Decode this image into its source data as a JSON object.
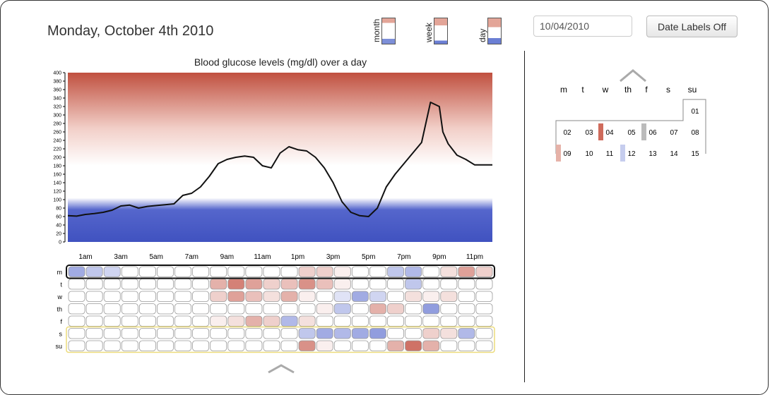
{
  "header": {
    "title": "Monday, October 4th 2010",
    "legend": [
      "month",
      "week",
      "day"
    ],
    "date_value": "10/04/2010",
    "date_labels_button": "Date Labels Off"
  },
  "colors": {
    "high": "#c0392b",
    "low": "#3f51c4",
    "line": "#111111"
  },
  "chart_data": {
    "type": "line",
    "title": "Blood glucose levels (mg/dl) over a day",
    "ylim": [
      0,
      400
    ],
    "yticks": [
      0,
      20,
      40,
      60,
      80,
      100,
      120,
      140,
      160,
      180,
      200,
      220,
      240,
      260,
      280,
      300,
      320,
      340,
      360,
      380,
      400
    ],
    "xlim": [
      0,
      24
    ],
    "xticks": [
      {
        "x": 1,
        "label": "1am"
      },
      {
        "x": 3,
        "label": "3am"
      },
      {
        "x": 5,
        "label": "5am"
      },
      {
        "x": 7,
        "label": "7am"
      },
      {
        "x": 9,
        "label": "9am"
      },
      {
        "x": 11,
        "label": "11am"
      },
      {
        "x": 13,
        "label": "1pm"
      },
      {
        "x": 15,
        "label": "3pm"
      },
      {
        "x": 17,
        "label": "5pm"
      },
      {
        "x": 19,
        "label": "7pm"
      },
      {
        "x": 21,
        "label": "9pm"
      },
      {
        "x": 23,
        "label": "11pm"
      }
    ],
    "series": [
      {
        "x": [
          0,
          0.5,
          1,
          1.5,
          2,
          2.5,
          3,
          3.5,
          4,
          4.5,
          5,
          5.5,
          6,
          6.5,
          7,
          7.5,
          8,
          8.5,
          9,
          9.5,
          10,
          10.5,
          11,
          11.5,
          12,
          12.5,
          13,
          13.5,
          14,
          14.5,
          15,
          15.5,
          16,
          16.5,
          17,
          17.5,
          18,
          18.5,
          19,
          19.5,
          20,
          20.5,
          21,
          21.2,
          21.5,
          22,
          22.5,
          23,
          23.5,
          24
        ],
        "y": [
          62,
          61,
          65,
          67,
          70,
          75,
          85,
          87,
          80,
          84,
          86,
          88,
          90,
          110,
          115,
          130,
          155,
          185,
          195,
          200,
          203,
          200,
          180,
          175,
          210,
          225,
          218,
          215,
          200,
          175,
          140,
          95,
          70,
          62,
          60,
          80,
          130,
          160,
          185,
          210,
          235,
          330,
          320,
          260,
          232,
          205,
          195,
          182,
          182,
          182
        ]
      }
    ]
  },
  "heatmap": {
    "rows": [
      "m",
      "t",
      "w",
      "th",
      "f",
      "s",
      "su"
    ],
    "cols": 24,
    "cells": [
      [
        -0.6,
        -0.4,
        -0.3,
        0,
        0,
        0,
        0,
        0,
        0,
        0,
        0,
        0,
        0,
        0.3,
        0.3,
        0.1,
        0,
        0,
        -0.4,
        -0.5,
        0,
        0.2,
        0.6,
        0.3
      ],
      [
        0,
        0,
        0,
        0,
        0,
        0,
        0,
        0,
        0.5,
        0.8,
        0.6,
        0.3,
        0.4,
        0.7,
        0.4,
        0.1,
        0,
        0,
        0,
        -0.4,
        0,
        0,
        0,
        0
      ],
      [
        0,
        0,
        0,
        0,
        0,
        0,
        0,
        0,
        0.3,
        0.6,
        0.4,
        0.2,
        0.5,
        0.1,
        0,
        -0.2,
        -0.6,
        -0.3,
        0,
        0.2,
        0.1,
        0.2,
        0,
        0
      ],
      [
        0,
        0,
        0,
        0,
        0,
        0,
        0,
        0,
        0,
        0,
        0,
        0,
        0,
        0,
        0.1,
        -0.4,
        0,
        0.5,
        0.3,
        0,
        -0.7,
        0,
        0,
        0
      ],
      [
        0,
        0,
        0,
        0,
        0,
        0,
        0,
        0,
        0.1,
        0.2,
        0.5,
        0.3,
        -0.5,
        0.2,
        0,
        0,
        0,
        0,
        0,
        0,
        0,
        0,
        0,
        0
      ],
      [
        0,
        0,
        0,
        0,
        0,
        0,
        0,
        0,
        0,
        0,
        0,
        0,
        0,
        -0.4,
        -0.6,
        -0.5,
        -0.6,
        -0.7,
        0,
        0,
        0.3,
        0.2,
        -0.5,
        0
      ],
      [
        0,
        0,
        0,
        0,
        0,
        0,
        0,
        0,
        0,
        0,
        0,
        0,
        0,
        0.7,
        0.1,
        0,
        0,
        0,
        0.5,
        0.9,
        0.5,
        0,
        0,
        0
      ]
    ]
  },
  "calendar": {
    "weekdays": [
      "m",
      "t",
      "w",
      "th",
      "f",
      "s",
      "su"
    ],
    "rows": [
      [
        null,
        null,
        null,
        null,
        null,
        null,
        "01"
      ],
      [
        "",
        "02",
        "03",
        "04",
        "05",
        "06",
        "07",
        "08"
      ],
      [
        "",
        "09",
        "10",
        "11",
        "12",
        "13",
        "14",
        "15"
      ]
    ]
  }
}
